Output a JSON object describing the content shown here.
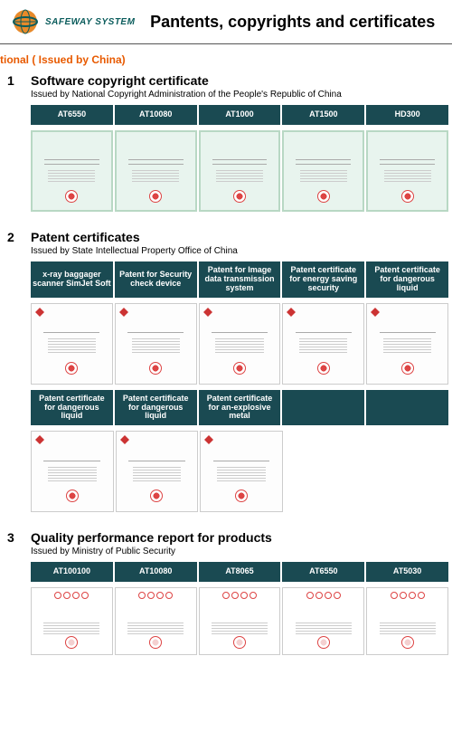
{
  "logo_text": "SAFEWAY SYSTEM",
  "page_title": "Pantents, copyrights and certificates",
  "subheading": "tional ( Issued by China)",
  "colors": {
    "tab_bg": "#1a4a52",
    "accent": "#e85a00",
    "logo_teal": "#0a5c5c"
  },
  "sections": [
    {
      "num": "1",
      "title": "Software copyright certificate",
      "issuer": "Issued by National Copyright Administration of the People's Republic of China",
      "tab_rows": [
        [
          "AT6550",
          "AT10080",
          "AT1000",
          "AT1500",
          "HD300"
        ]
      ],
      "cert_rows": [
        {
          "count": 5,
          "style": "green"
        }
      ]
    },
    {
      "num": "2",
      "title": "Patent certificates",
      "issuer": "Issued by State Intellectual Property Office of China",
      "tab_rows": [
        [
          "x-ray baggager scanner SimJet Soft",
          "Patent for Security check device",
          "Patent for Image data transmission system",
          "Patent certificate for energy saving security",
          "Patent certificate for dangerous liquid"
        ]
      ],
      "cert_rows": [
        {
          "count": 5,
          "style": "white"
        }
      ],
      "tab_rows2": [
        [
          "Patent certificate for dangerous liquid",
          "Patent certificate for dangerous liquid",
          "Patent certificate for an-explosive metal",
          "",
          ""
        ]
      ],
      "cert_rows2": [
        {
          "count": 3,
          "style": "white",
          "pad_to": 5
        }
      ]
    },
    {
      "num": "3",
      "title": "Quality performance report for products",
      "issuer": "Issued by Ministry of Public Security",
      "tab_rows": [
        [
          "AT100100",
          "AT10080",
          "AT8065",
          "AT6550",
          "AT5030"
        ]
      ],
      "cert_rows": [
        {
          "count": 5,
          "style": "report"
        }
      ]
    }
  ]
}
